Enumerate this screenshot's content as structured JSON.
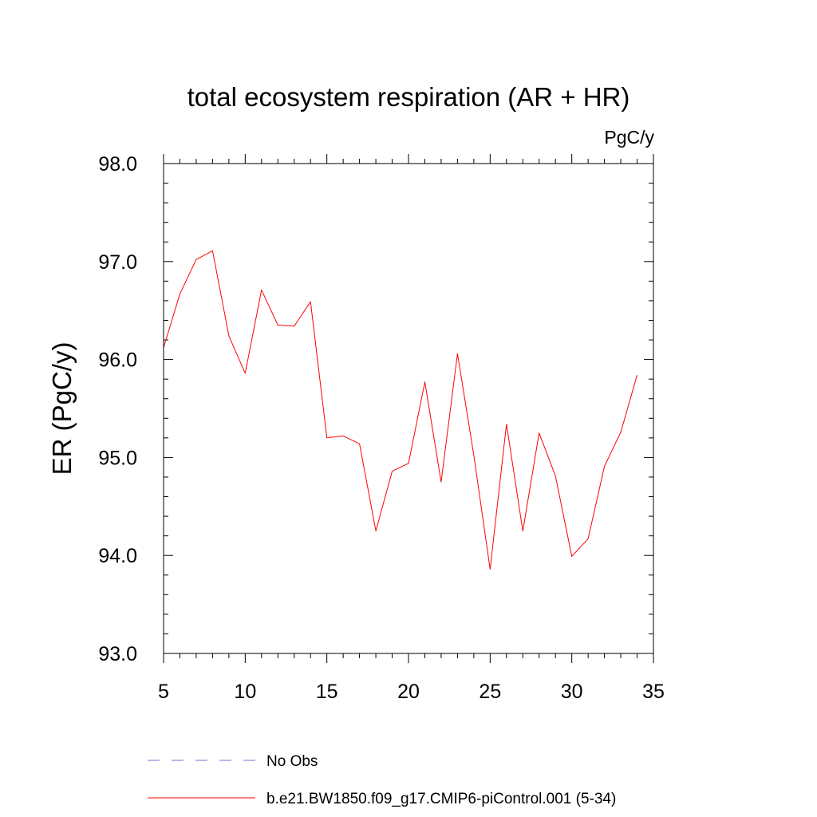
{
  "chart_data": {
    "type": "line",
    "title": "total ecosystem respiration (AR + HR)",
    "units_label": "PgC/y",
    "xlabel": "",
    "ylabel": "ER  (PgC/y)",
    "xlim": [
      5,
      35
    ],
    "ylim": [
      93.0,
      98.0
    ],
    "x_ticks": [
      5,
      10,
      15,
      20,
      25,
      30,
      35
    ],
    "x_tick_labels": [
      "5",
      "10",
      "15",
      "20",
      "25",
      "30",
      "35"
    ],
    "y_ticks": [
      93.0,
      94.0,
      95.0,
      96.0,
      97.0,
      98.0
    ],
    "y_tick_labels": [
      "93.0",
      "94.0",
      "95.0",
      "96.0",
      "97.0",
      "98.0"
    ],
    "x_minor_step": 1,
    "y_minor_step": 0.2,
    "grid": false,
    "series": [
      {
        "name": "b.e21.BW1850.f09_g17.CMIP6-piControl.001 (5-34)",
        "color": "#ff0000",
        "style": "solid",
        "x": [
          5,
          6,
          7,
          8,
          9,
          10,
          11,
          12,
          13,
          14,
          15,
          16,
          17,
          18,
          19,
          20,
          21,
          22,
          23,
          24,
          25,
          26,
          27,
          28,
          29,
          30,
          31,
          32,
          33,
          34
        ],
        "values": [
          96.12,
          96.67,
          97.02,
          97.11,
          96.24,
          95.86,
          96.71,
          96.35,
          96.34,
          96.59,
          95.2,
          95.22,
          95.14,
          94.25,
          94.86,
          94.94,
          95.77,
          94.75,
          96.06,
          95.02,
          93.86,
          95.34,
          94.25,
          95.25,
          94.81,
          93.99,
          94.17,
          94.91,
          95.26,
          95.84
        ]
      }
    ],
    "legend": [
      {
        "label": "No Obs",
        "color": "#7070d0",
        "style": "dashed"
      },
      {
        "label": "b.e21.BW1850.f09_g17.CMIP6-piControl.001 (5-34)",
        "color": "#ff0000",
        "style": "solid"
      }
    ]
  }
}
